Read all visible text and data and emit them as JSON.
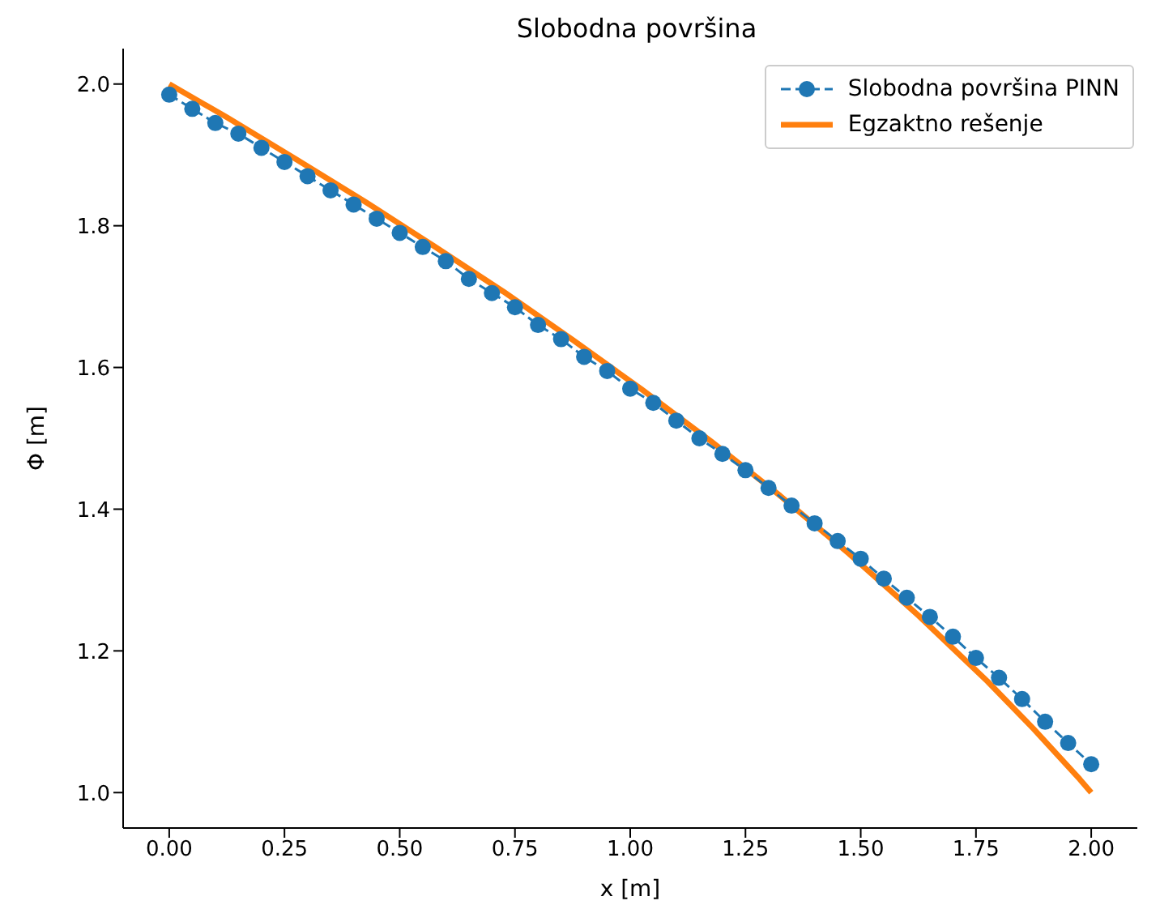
{
  "chart_data": {
    "type": "line",
    "title": "Slobodna površina",
    "xlabel": "x [m]",
    "ylabel": "Φ [m]",
    "xlim": [
      -0.1,
      2.1
    ],
    "ylim": [
      0.95,
      2.05
    ],
    "xticks": [
      {
        "value": 0,
        "label": "0.00"
      },
      {
        "value": 0.25,
        "label": "0.25"
      },
      {
        "value": 0.5,
        "label": "0.50"
      },
      {
        "value": 0.75,
        "label": "0.75"
      },
      {
        "value": 1,
        "label": "1.00"
      },
      {
        "value": 1.25,
        "label": "1.25"
      },
      {
        "value": 1.5,
        "label": "1.50"
      },
      {
        "value": 1.75,
        "label": "1.75"
      },
      {
        "value": 2,
        "label": "2.00"
      }
    ],
    "yticks": [
      {
        "value": 1,
        "label": "1.0"
      },
      {
        "value": 1.2,
        "label": "1.2"
      },
      {
        "value": 1.4,
        "label": "1.4"
      },
      {
        "value": 1.6,
        "label": "1.6"
      },
      {
        "value": 1.8,
        "label": "1.8"
      },
      {
        "value": 2,
        "label": "2.0"
      }
    ],
    "grid": false,
    "legend": "top right",
    "series": [
      {
        "name": "Slobodna površina PINN",
        "color": "#1f77b4",
        "marker": "circle",
        "line_style": "dashed",
        "x": [
          0,
          0.05,
          0.1,
          0.15,
          0.2,
          0.25,
          0.3,
          0.35,
          0.4,
          0.45,
          0.5,
          0.55,
          0.6,
          0.65,
          0.7,
          0.75,
          0.8,
          0.85,
          0.9,
          0.95,
          1,
          1.05,
          1.1,
          1.15,
          1.2,
          1.25,
          1.3,
          1.35,
          1.4,
          1.45,
          1.5,
          1.55,
          1.6,
          1.65,
          1.7,
          1.75,
          1.8,
          1.85,
          1.9,
          1.95,
          2
        ],
        "values": [
          1.985,
          1.965,
          1.945,
          1.93,
          1.91,
          1.89,
          1.87,
          1.85,
          1.83,
          1.81,
          1.79,
          1.77,
          1.75,
          1.725,
          1.705,
          1.685,
          1.66,
          1.64,
          1.615,
          1.595,
          1.57,
          1.55,
          1.525,
          1.5,
          1.478,
          1.455,
          1.43,
          1.405,
          1.38,
          1.355,
          1.33,
          1.302,
          1.275,
          1.248,
          1.22,
          1.19,
          1.162,
          1.132,
          1.1,
          1.07,
          1.04
        ]
      },
      {
        "name": "Egzaktno rešenje",
        "color": "#ff7f0e",
        "marker": "none",
        "line_style": "solid",
        "x": [
          0,
          0.125,
          0.275,
          0.425,
          0.575,
          0.725,
          0.875,
          1.025,
          1.175,
          1.325,
          1.475,
          1.625,
          1.775,
          1.875,
          1.975,
          2
        ],
        "values": [
          2.0,
          1.953,
          1.894,
          1.834,
          1.771,
          1.707,
          1.639,
          1.569,
          1.496,
          1.419,
          1.337,
          1.25,
          1.157,
          1.09,
          1.019,
          1.0
        ]
      }
    ]
  }
}
